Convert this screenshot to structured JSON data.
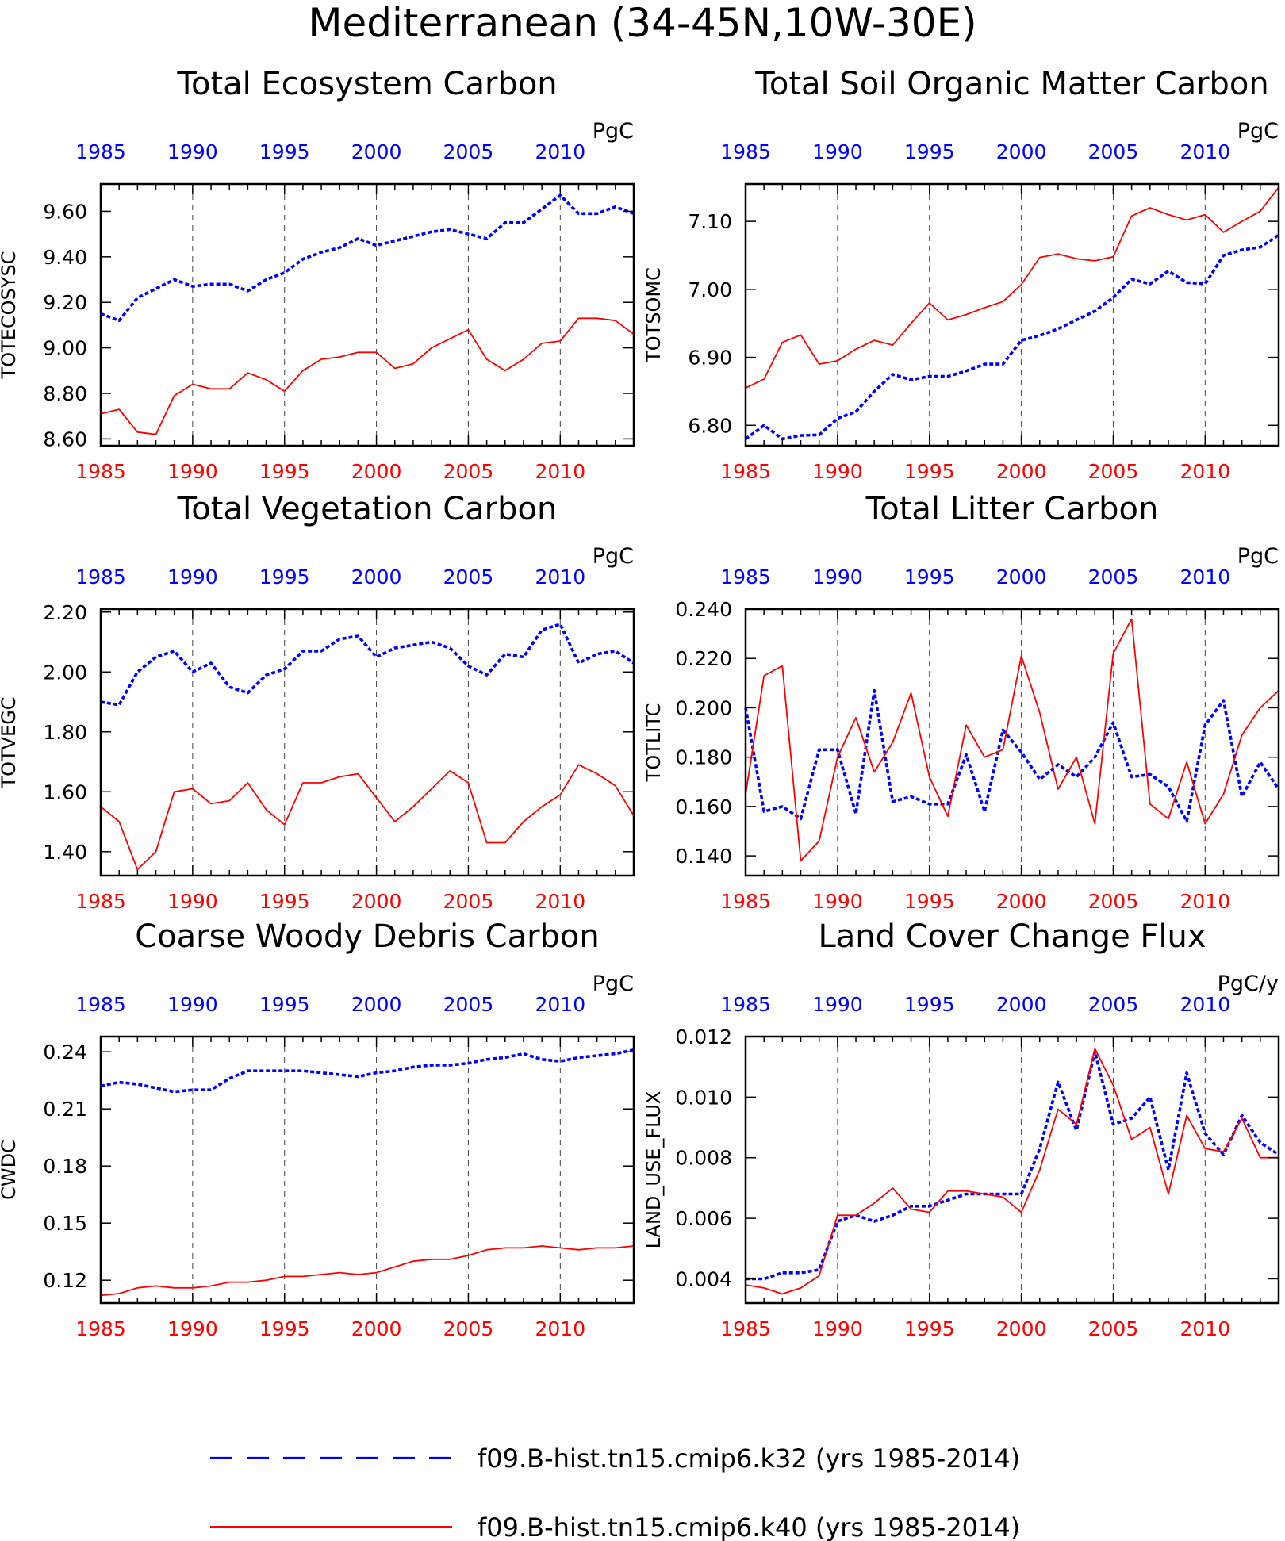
{
  "main_title": "Mediterranean (34-45N,10W-30E)",
  "colors": {
    "k32": "#0000ff",
    "k40": "#ff0000",
    "axis": "#000000"
  },
  "legend": {
    "entries": [
      {
        "label": "f09.B-hist.tn15.cmip6.k32 (yrs 1985-2014)",
        "style": "dashed-blue"
      },
      {
        "label": "f09.B-hist.tn15.cmip6.k40 (yrs 1985-2014)",
        "style": "solid-red"
      }
    ]
  },
  "chart_data": [
    {
      "type": "line",
      "title": "Total Ecosystem Carbon",
      "ylabel": "TOTECOSYSC",
      "units": "PgC",
      "xlim": [
        1985,
        2014
      ],
      "ylim": [
        8.57,
        9.72
      ],
      "yticks": [
        8.6,
        8.8,
        9.0,
        9.2,
        9.4,
        9.6
      ],
      "ytick_labels": [
        "8.60",
        "8.80",
        "9.00",
        "9.20",
        "9.40",
        "9.60"
      ],
      "xticks": [
        1985,
        1990,
        1995,
        2000,
        2005,
        2010
      ],
      "x": [
        1985,
        1986,
        1987,
        1988,
        1989,
        1990,
        1991,
        1992,
        1993,
        1994,
        1995,
        1996,
        1997,
        1998,
        1999,
        2000,
        2001,
        2002,
        2003,
        2004,
        2005,
        2006,
        2007,
        2008,
        2009,
        2010,
        2011,
        2012,
        2013,
        2014
      ],
      "series": [
        {
          "name": "f09.B-hist.tn15.cmip6.k32",
          "style": "dashed",
          "values": [
            9.15,
            9.12,
            9.22,
            9.26,
            9.3,
            9.27,
            9.28,
            9.28,
            9.25,
            9.3,
            9.33,
            9.39,
            9.42,
            9.44,
            9.48,
            9.45,
            9.47,
            9.49,
            9.51,
            9.52,
            9.5,
            9.48,
            9.55,
            9.55,
            9.61,
            9.67,
            9.59,
            9.59,
            9.62,
            9.59
          ]
        },
        {
          "name": "f09.B-hist.tn15.cmip6.k40",
          "style": "solid",
          "values": [
            8.71,
            8.73,
            8.63,
            8.62,
            8.79,
            8.84,
            8.82,
            8.82,
            8.89,
            8.86,
            8.81,
            8.9,
            8.95,
            8.96,
            8.98,
            8.98,
            8.91,
            8.93,
            9.0,
            9.04,
            9.08,
            8.95,
            8.9,
            8.95,
            9.02,
            9.03,
            9.13,
            9.13,
            9.12,
            9.06
          ]
        }
      ]
    },
    {
      "type": "line",
      "title": "Total Soil Organic Matter Carbon",
      "ylabel": "TOTSOMC",
      "units": "PgC",
      "xlim": [
        1985,
        2014
      ],
      "ylim": [
        6.77,
        7.155
      ],
      "yticks": [
        6.8,
        6.9,
        7.0,
        7.1
      ],
      "ytick_labels": [
        "6.80",
        "6.90",
        "7.00",
        "7.10"
      ],
      "xticks": [
        1985,
        1990,
        1995,
        2000,
        2005,
        2010
      ],
      "x": [
        1985,
        1986,
        1987,
        1988,
        1989,
        1990,
        1991,
        1992,
        1993,
        1994,
        1995,
        1996,
        1997,
        1998,
        1999,
        2000,
        2001,
        2002,
        2003,
        2004,
        2005,
        2006,
        2007,
        2008,
        2009,
        2010,
        2011,
        2012,
        2013,
        2014
      ],
      "series": [
        {
          "name": "f09.B-hist.tn15.cmip6.k32",
          "style": "dashed",
          "values": [
            6.78,
            6.8,
            6.78,
            6.785,
            6.786,
            6.81,
            6.82,
            6.85,
            6.875,
            6.867,
            6.872,
            6.872,
            6.88,
            6.89,
            6.89,
            6.925,
            6.932,
            6.942,
            6.955,
            6.968,
            6.988,
            7.015,
            7.008,
            7.027,
            7.01,
            7.008,
            7.05,
            7.058,
            7.062,
            7.08
          ]
        },
        {
          "name": "f09.B-hist.tn15.cmip6.k40",
          "style": "solid",
          "values": [
            6.855,
            6.868,
            6.922,
            6.933,
            6.89,
            6.895,
            6.912,
            6.925,
            6.918,
            6.95,
            6.98,
            6.955,
            6.963,
            6.973,
            6.982,
            7.007,
            7.047,
            7.052,
            7.045,
            7.042,
            7.048,
            7.108,
            7.12,
            7.11,
            7.102,
            7.11,
            7.084,
            7.1,
            7.115,
            7.15
          ]
        }
      ]
    },
    {
      "type": "line",
      "title": "Total Vegetation Carbon",
      "ylabel": "TOTVEGC",
      "units": "PgC",
      "xlim": [
        1985,
        2014
      ],
      "ylim": [
        1.32,
        2.21
      ],
      "yticks": [
        1.4,
        1.6,
        1.8,
        2.0,
        2.2
      ],
      "ytick_labels": [
        "1.40",
        "1.60",
        "1.80",
        "2.00",
        "2.20"
      ],
      "xticks": [
        1985,
        1990,
        1995,
        2000,
        2005,
        2010
      ],
      "x": [
        1985,
        1986,
        1987,
        1988,
        1989,
        1990,
        1991,
        1992,
        1993,
        1994,
        1995,
        1996,
        1997,
        1998,
        1999,
        2000,
        2001,
        2002,
        2003,
        2004,
        2005,
        2006,
        2007,
        2008,
        2009,
        2010,
        2011,
        2012,
        2013,
        2014
      ],
      "series": [
        {
          "name": "f09.B-hist.tn15.cmip6.k32",
          "style": "dashed",
          "values": [
            1.9,
            1.89,
            2.0,
            2.05,
            2.07,
            2.0,
            2.03,
            1.95,
            1.93,
            1.99,
            2.01,
            2.07,
            2.07,
            2.11,
            2.12,
            2.05,
            2.08,
            2.09,
            2.1,
            2.08,
            2.02,
            1.99,
            2.06,
            2.05,
            2.14,
            2.16,
            2.03,
            2.06,
            2.07,
            2.03
          ]
        },
        {
          "name": "f09.B-hist.tn15.cmip6.k40",
          "style": "solid",
          "values": [
            1.55,
            1.5,
            1.34,
            1.4,
            1.6,
            1.61,
            1.56,
            1.57,
            1.63,
            1.54,
            1.49,
            1.63,
            1.63,
            1.65,
            1.66,
            1.58,
            1.5,
            1.55,
            1.61,
            1.67,
            1.63,
            1.43,
            1.43,
            1.5,
            1.55,
            1.59,
            1.69,
            1.66,
            1.62,
            1.52
          ]
        }
      ]
    },
    {
      "type": "line",
      "title": "Total Litter Carbon",
      "ylabel": "TOTLITC",
      "units": "PgC",
      "xlim": [
        1985,
        2014
      ],
      "ylim": [
        0.132,
        0.24
      ],
      "yticks": [
        0.14,
        0.16,
        0.18,
        0.2,
        0.22,
        0.24
      ],
      "ytick_labels": [
        "0.140",
        "0.160",
        "0.180",
        "0.200",
        "0.220",
        "0.240"
      ],
      "xticks": [
        1985,
        1990,
        1995,
        2000,
        2005,
        2010
      ],
      "x": [
        1985,
        1986,
        1987,
        1988,
        1989,
        1990,
        1991,
        1992,
        1993,
        1994,
        1995,
        1996,
        1997,
        1998,
        1999,
        2000,
        2001,
        2002,
        2003,
        2004,
        2005,
        2006,
        2007,
        2008,
        2009,
        2010,
        2011,
        2012,
        2013,
        2014
      ],
      "series": [
        {
          "name": "f09.B-hist.tn15.cmip6.k32",
          "style": "dashed",
          "values": [
            0.2,
            0.158,
            0.16,
            0.155,
            0.183,
            0.183,
            0.157,
            0.207,
            0.162,
            0.164,
            0.161,
            0.161,
            0.181,
            0.158,
            0.191,
            0.182,
            0.171,
            0.177,
            0.172,
            0.18,
            0.194,
            0.172,
            0.173,
            0.168,
            0.154,
            0.193,
            0.203,
            0.164,
            0.178,
            0.167
          ]
        },
        {
          "name": "f09.B-hist.tn15.cmip6.k40",
          "style": "solid",
          "values": [
            0.165,
            0.213,
            0.217,
            0.138,
            0.146,
            0.18,
            0.196,
            0.174,
            0.186,
            0.206,
            0.172,
            0.156,
            0.193,
            0.18,
            0.183,
            0.221,
            0.198,
            0.167,
            0.18,
            0.153,
            0.222,
            0.236,
            0.161,
            0.155,
            0.178,
            0.153,
            0.165,
            0.189,
            0.2,
            0.207
          ]
        }
      ]
    },
    {
      "type": "line",
      "title": "Coarse Woody Debris Carbon",
      "ylabel": "CWDC",
      "units": "PgC",
      "xlim": [
        1985,
        2014
      ],
      "ylim": [
        0.108,
        0.248
      ],
      "yticks": [
        0.12,
        0.15,
        0.18,
        0.21,
        0.24
      ],
      "ytick_labels": [
        "0.12",
        "0.15",
        "0.18",
        "0.21",
        "0.24"
      ],
      "xticks": [
        1985,
        1990,
        1995,
        2000,
        2005,
        2010
      ],
      "x": [
        1985,
        1986,
        1987,
        1988,
        1989,
        1990,
        1991,
        1992,
        1993,
        1994,
        1995,
        1996,
        1997,
        1998,
        1999,
        2000,
        2001,
        2002,
        2003,
        2004,
        2005,
        2006,
        2007,
        2008,
        2009,
        2010,
        2011,
        2012,
        2013,
        2014
      ],
      "series": [
        {
          "name": "f09.B-hist.tn15.cmip6.k32",
          "style": "dashed",
          "values": [
            0.222,
            0.224,
            0.223,
            0.221,
            0.219,
            0.22,
            0.22,
            0.226,
            0.23,
            0.23,
            0.23,
            0.23,
            0.229,
            0.228,
            0.227,
            0.229,
            0.23,
            0.232,
            0.233,
            0.233,
            0.234,
            0.236,
            0.237,
            0.239,
            0.236,
            0.235,
            0.237,
            0.238,
            0.239,
            0.241
          ]
        },
        {
          "name": "f09.B-hist.tn15.cmip6.k40",
          "style": "solid",
          "values": [
            0.112,
            0.113,
            0.116,
            0.117,
            0.116,
            0.116,
            0.117,
            0.119,
            0.119,
            0.12,
            0.122,
            0.122,
            0.123,
            0.124,
            0.123,
            0.124,
            0.127,
            0.13,
            0.131,
            0.131,
            0.133,
            0.136,
            0.137,
            0.137,
            0.138,
            0.137,
            0.136,
            0.137,
            0.137,
            0.138
          ]
        }
      ]
    },
    {
      "type": "line",
      "title": "Land Cover Change Flux",
      "ylabel": "LAND_USE_FLUX",
      "units": "PgC/y",
      "xlim": [
        1985,
        2014
      ],
      "ylim": [
        0.0032,
        0.012
      ],
      "yticks": [
        0.004,
        0.006,
        0.008,
        0.01,
        0.012
      ],
      "ytick_labels": [
        "0.004",
        "0.006",
        "0.008",
        "0.010",
        "0.012"
      ],
      "xticks": [
        1985,
        1990,
        1995,
        2000,
        2005,
        2010
      ],
      "x": [
        1985,
        1986,
        1987,
        1988,
        1989,
        1990,
        1991,
        1992,
        1993,
        1994,
        1995,
        1996,
        1997,
        1998,
        1999,
        2000,
        2001,
        2002,
        2003,
        2004,
        2005,
        2006,
        2007,
        2008,
        2009,
        2010,
        2011,
        2012,
        2013,
        2014
      ],
      "series": [
        {
          "name": "f09.B-hist.tn15.cmip6.k32",
          "style": "dashed",
          "values": [
            0.004,
            0.004,
            0.0042,
            0.0042,
            0.0043,
            0.0059,
            0.0061,
            0.0059,
            0.0061,
            0.0064,
            0.0064,
            0.0066,
            0.0068,
            0.0068,
            0.0068,
            0.0068,
            0.0083,
            0.0105,
            0.0089,
            0.0115,
            0.0091,
            0.0093,
            0.01,
            0.0076,
            0.0108,
            0.0088,
            0.0081,
            0.0094,
            0.0085,
            0.0081
          ]
        },
        {
          "name": "f09.B-hist.tn15.cmip6.k40",
          "style": "solid",
          "values": [
            0.0038,
            0.0037,
            0.0035,
            0.0037,
            0.0041,
            0.0061,
            0.0061,
            0.0065,
            0.007,
            0.0063,
            0.0062,
            0.0069,
            0.0069,
            0.0068,
            0.0067,
            0.0062,
            0.0076,
            0.0096,
            0.0091,
            0.0116,
            0.0104,
            0.0086,
            0.009,
            0.0068,
            0.0094,
            0.0083,
            0.0082,
            0.0093,
            0.008,
            0.008
          ]
        }
      ]
    }
  ]
}
